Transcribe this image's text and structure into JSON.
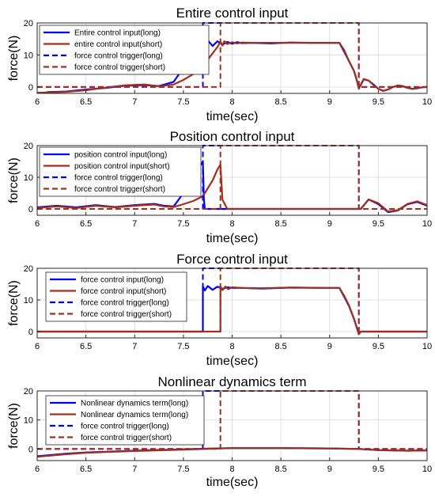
{
  "colors": {
    "blue": "#0000ff",
    "red": "#a0301c",
    "grid": "#e0e0e0",
    "axis": "#262626"
  },
  "chart_data": [
    {
      "type": "line",
      "title": "Entire control input",
      "xlabel": "time(sec)",
      "ylabel": "force(N)",
      "xlim": [
        6,
        10
      ],
      "ylim": [
        -2,
        20
      ],
      "xticks": [
        "6",
        "6.5",
        "7",
        "7.5",
        "8",
        "8.5",
        "9",
        "9.5",
        "10"
      ],
      "yticks": [
        "0",
        "10",
        "20"
      ],
      "grid": true,
      "legend_position": "top-left",
      "series": [
        {
          "name": "Entire control input(long)",
          "style": "solid",
          "color": "#0000ff",
          "x": [
            6.1,
            6.3,
            6.5,
            6.7,
            6.9,
            7.1,
            7.25,
            7.4,
            7.5,
            7.55,
            7.6,
            7.65,
            7.7,
            7.72,
            7.75,
            7.8,
            7.85,
            7.9,
            7.95,
            8.0,
            8.05,
            8.1,
            8.2,
            8.4,
            8.6,
            8.8,
            9.0,
            9.1,
            9.15,
            9.2,
            9.25,
            9.28,
            9.3,
            9.32,
            9.35,
            9.4,
            9.45,
            9.5,
            9.55,
            9.6,
            9.65,
            9.7,
            9.75,
            9.8,
            9.85,
            9.9,
            9.95,
            10.0
          ],
          "y": [
            -1.6,
            -1.4,
            -0.8,
            -0.3,
            0.4,
            0.6,
            0.3,
            1.6,
            6.0,
            9.0,
            11.5,
            13.8,
            15.0,
            12.7,
            14.6,
            12.8,
            14.3,
            13.2,
            14.1,
            13.5,
            14.0,
            13.7,
            13.8,
            13.6,
            13.9,
            13.8,
            13.8,
            13.8,
            11.0,
            8.0,
            5.0,
            2.0,
            -0.4,
            0.6,
            2.4,
            2.0,
            0.8,
            -0.6,
            -1.2,
            -0.8,
            0.0,
            0.4,
            0.2,
            -0.3,
            -0.6,
            -0.4,
            -0.1,
            0.0
          ]
        },
        {
          "name": "entire control input(short)",
          "style": "solid",
          "color": "#a0301c",
          "x": [
            6.0,
            6.3,
            6.5,
            6.7,
            6.9,
            7.1,
            7.25,
            7.4,
            7.5,
            7.6,
            7.7,
            7.8,
            7.85,
            7.88,
            7.9,
            7.92,
            7.95,
            8.0,
            8.05,
            8.1,
            8.2,
            8.4,
            8.6,
            8.8,
            9.0,
            9.1,
            9.15,
            9.2,
            9.25,
            9.28,
            9.3,
            9.32,
            9.35,
            9.4,
            9.45,
            9.5,
            9.55,
            9.6,
            9.65,
            9.7,
            9.75,
            9.8,
            9.85,
            9.9,
            9.95,
            10.0
          ],
          "y": [
            -1.8,
            -1.5,
            -1.0,
            -0.2,
            0.5,
            0.8,
            0.2,
            0.8,
            2.2,
            4.0,
            6.5,
            10.5,
            12.5,
            14.2,
            12.9,
            14.3,
            13.4,
            14.0,
            13.6,
            13.9,
            13.8,
            13.8,
            13.8,
            13.8,
            13.8,
            13.8,
            11.5,
            8.0,
            5.0,
            2.0,
            -0.6,
            0.8,
            2.5,
            2.0,
            0.6,
            -0.6,
            -1.2,
            -0.8,
            0.0,
            0.5,
            0.3,
            -0.3,
            -0.6,
            -0.4,
            -0.1,
            0.0
          ]
        },
        {
          "name": "force control trigger(long)",
          "style": "dashed",
          "color": "#0000ff",
          "x": [
            6.0,
            7.7,
            7.7,
            9.3,
            9.3,
            10.0
          ],
          "y": [
            0,
            0,
            20,
            20,
            0,
            0
          ]
        },
        {
          "name": "force control trigger(short)",
          "style": "dashed",
          "color": "#a0301c",
          "x": [
            6.0,
            7.88,
            7.88,
            9.3,
            9.3,
            10.0
          ],
          "y": [
            0,
            0,
            20,
            20,
            0,
            0
          ]
        }
      ]
    },
    {
      "type": "line",
      "title": "Position control input",
      "xlabel": "time(sec)",
      "ylabel": "force(N)",
      "xlim": [
        6,
        10
      ],
      "ylim": [
        -2,
        20
      ],
      "xticks": [
        "6",
        "6.5",
        "7",
        "7.5",
        "8",
        "8.5",
        "9",
        "9.5",
        "10"
      ],
      "yticks": [
        "0",
        "10",
        "20"
      ],
      "grid": true,
      "legend_position": "top-left",
      "series": [
        {
          "name": "position control input(long)",
          "style": "solid",
          "color": "#0000ff",
          "x": [
            6.0,
            6.2,
            6.4,
            6.6,
            6.8,
            7.0,
            7.2,
            7.3,
            7.4,
            7.5,
            7.6,
            7.7,
            7.71,
            7.72,
            7.8,
            7.9,
            8.5,
            9.0,
            9.3,
            9.32,
            9.4,
            9.5,
            9.6,
            9.7,
            9.8,
            9.9,
            10.0
          ],
          "y": [
            0.5,
            1.0,
            0.5,
            1.2,
            0.6,
            1.2,
            1.6,
            1.0,
            0.8,
            5.0,
            10.0,
            15.0,
            3.0,
            0.0,
            0.0,
            0.0,
            0.0,
            0.0,
            0.0,
            0.0,
            3.0,
            1.5,
            -1.0,
            -0.5,
            1.5,
            2.2,
            1.0
          ]
        },
        {
          "name": "position control input(short)",
          "style": "solid",
          "color": "#a0301c",
          "x": [
            6.0,
            6.2,
            6.4,
            6.6,
            6.8,
            7.0,
            7.2,
            7.3,
            7.4,
            7.5,
            7.6,
            7.7,
            7.8,
            7.85,
            7.88,
            7.9,
            7.95,
            8.5,
            9.0,
            9.3,
            9.32,
            9.4,
            9.5,
            9.6,
            9.7,
            9.8,
            9.9,
            10.0
          ],
          "y": [
            0.3,
            0.8,
            0.3,
            1.0,
            0.5,
            1.0,
            1.4,
            0.8,
            0.6,
            1.5,
            2.5,
            4.0,
            9.0,
            12.5,
            14.0,
            3.0,
            0.0,
            0.0,
            0.0,
            0.0,
            0.0,
            3.0,
            1.8,
            -0.8,
            -0.4,
            1.6,
            2.4,
            1.2
          ]
        },
        {
          "name": "force control trigger(long)",
          "style": "dashed",
          "color": "#0000ff",
          "x": [
            6.0,
            7.7,
            7.7,
            9.3,
            9.3,
            10.0
          ],
          "y": [
            0,
            0,
            20,
            20,
            0,
            0
          ]
        },
        {
          "name": "force control trigger(short)",
          "style": "dashed",
          "color": "#a0301c",
          "x": [
            6.0,
            7.88,
            7.88,
            9.3,
            9.3,
            10.0
          ],
          "y": [
            0,
            0,
            20,
            20,
            0,
            0
          ]
        }
      ]
    },
    {
      "type": "line",
      "title": "Force control input",
      "xlabel": "time(sec)",
      "ylabel": "force(N)",
      "xlim": [
        6,
        10
      ],
      "ylim": [
        -2,
        20
      ],
      "xticks": [
        "6",
        "6.5",
        "7",
        "7.5",
        "8",
        "8.5",
        "9",
        "9.5",
        "10"
      ],
      "yticks": [
        "0",
        "10",
        "20"
      ],
      "grid": true,
      "legend_position": "top-left",
      "series": [
        {
          "name": "force control input(long)",
          "style": "solid",
          "color": "#0000ff",
          "x": [
            6.0,
            7.7,
            7.7,
            7.72,
            7.75,
            7.8,
            7.85,
            7.9,
            7.95,
            8.0,
            8.1,
            8.3,
            8.6,
            9.0,
            9.1,
            9.15,
            9.2,
            9.25,
            9.3,
            9.32,
            10.0
          ],
          "y": [
            0,
            0,
            14.3,
            13.0,
            14.4,
            13.2,
            14.2,
            13.5,
            14.0,
            13.8,
            13.8,
            13.6,
            13.9,
            13.8,
            13.8,
            11.0,
            8.0,
            4.0,
            -0.8,
            0,
            0
          ]
        },
        {
          "name": "force control input(short)",
          "style": "solid",
          "color": "#a0301c",
          "x": [
            6.0,
            7.88,
            7.88,
            7.9,
            7.93,
            7.96,
            8.0,
            8.1,
            8.3,
            8.6,
            9.0,
            9.1,
            9.15,
            9.2,
            9.25,
            9.3,
            9.32,
            10.0
          ],
          "y": [
            0,
            0,
            14.3,
            13.1,
            14.2,
            13.4,
            14.0,
            13.8,
            13.7,
            13.9,
            13.8,
            13.8,
            11.3,
            8.2,
            4.0,
            -0.8,
            0,
            0
          ]
        },
        {
          "name": "force control trigger(long)",
          "style": "dashed",
          "color": "#0000ff",
          "x": [
            6.0,
            7.7,
            7.7,
            9.3,
            9.3,
            10.0
          ],
          "y": [
            0,
            0,
            20,
            20,
            0,
            0
          ]
        },
        {
          "name": "force control trigger(short)",
          "style": "dashed",
          "color": "#a0301c",
          "x": [
            6.0,
            7.88,
            7.88,
            9.3,
            9.3,
            10.0
          ],
          "y": [
            0,
            0,
            20,
            20,
            0,
            0
          ]
        }
      ]
    },
    {
      "type": "line",
      "title": "Nonlinear dynamics term",
      "xlabel": "time(sec)",
      "ylabel": "force(N)",
      "xlim": [
        6,
        10
      ],
      "ylim": [
        -4,
        20
      ],
      "xticks": [
        "6",
        "6.5",
        "7",
        "7.5",
        "8",
        "8.5",
        "9",
        "9.5",
        "10"
      ],
      "yticks": [
        "0",
        "10",
        "20"
      ],
      "grid": true,
      "legend_position": "top-left",
      "series": [
        {
          "name": "Nonlinear dynamics term(long)",
          "style": "solid",
          "color": "#0000ff",
          "x": [
            6.0,
            6.3,
            6.5,
            7.0,
            7.5,
            7.7,
            8.0,
            8.5,
            9.0,
            9.3,
            9.5,
            9.8,
            10.0
          ],
          "y": [
            -2.5,
            -1.6,
            -1.2,
            -0.6,
            -0.1,
            0.1,
            0.3,
            0.3,
            0.2,
            0.0,
            -0.4,
            -0.6,
            -0.5
          ]
        },
        {
          "name": "Nonlinear dynamics term(long)",
          "style": "solid",
          "color": "#a0301c",
          "x": [
            6.0,
            6.3,
            6.5,
            7.0,
            7.5,
            7.7,
            8.0,
            8.5,
            9.0,
            9.3,
            9.5,
            9.8,
            10.0
          ],
          "y": [
            -2.7,
            -1.8,
            -1.3,
            -0.7,
            -0.2,
            0.0,
            0.3,
            0.3,
            0.2,
            0.0,
            -0.4,
            -0.6,
            -0.5
          ]
        },
        {
          "name": "force control trigger(long)",
          "style": "dashed",
          "color": "#0000ff",
          "x": [
            6.0,
            7.7,
            7.7,
            9.3,
            9.3,
            10.0
          ],
          "y": [
            0,
            0,
            20,
            20,
            0,
            0
          ]
        },
        {
          "name": "force control trigger(short)",
          "style": "dashed",
          "color": "#a0301c",
          "x": [
            6.0,
            7.88,
            7.88,
            9.3,
            9.3,
            10.0
          ],
          "y": [
            0,
            0,
            20,
            20,
            0,
            0
          ]
        }
      ]
    }
  ]
}
